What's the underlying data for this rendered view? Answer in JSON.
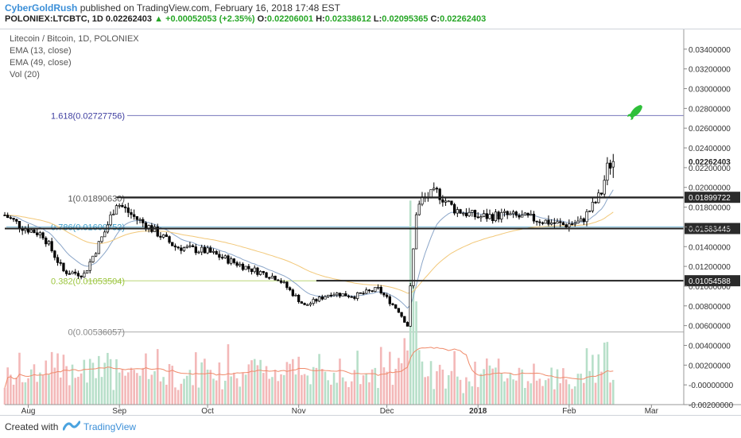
{
  "header": {
    "user": "CyberGoldRush",
    "published": "published on TradingView.com, February 16, 2018 17:48 EST",
    "symbol": "POLONIEX:LTCBTC, 1D",
    "last": "0.02262403",
    "change": "+0.00052053 (+2.35%)",
    "open_label": "O:",
    "open": "0.02206001",
    "high_label": "H:",
    "high": "0.02338612",
    "low_label": "L:",
    "low": "0.02095365",
    "close_label": "C:",
    "close": "0.02262403"
  },
  "legend": {
    "title": "Litecoin / Bitcoin, 1D, POLONIEX",
    "ema13": "EMA (13, close)",
    "ema49": "EMA (49, close)",
    "vol": "Vol (20)"
  },
  "footer": {
    "created": "Created with",
    "brand": "TradingView"
  },
  "colors": {
    "up": "#ffffff",
    "down": "#000000",
    "wick": "#000000",
    "ema13": "#8aa5c8",
    "ema49": "#f2c879",
    "vol_up": "#b7dfc9",
    "vol_down": "#f3b8b8",
    "vol_ma": "#f08a6a",
    "fib_1618": "#3e3ea0",
    "fib_1": "#555555",
    "fib_0786": "#3b9cc8",
    "fib_0382": "#9bc53d",
    "fib_0": "#888888",
    "rocket": "#2fbf3a"
  },
  "chart_data": {
    "type": "candlestick",
    "y_axis": {
      "ylim": [
        -0.002,
        0.036
      ],
      "ticks": [
        "0.03400000",
        "0.03200000",
        "0.03000000",
        "0.02800000",
        "0.02600000",
        "0.02400000",
        "0.02200000",
        "0.02000000",
        "0.01800000",
        "0.01600000",
        "0.01400000",
        "0.01200000",
        "0.01000000",
        "0.00800000",
        "0.00600000",
        "0.00400000",
        "0.00200000",
        "-0.00000000",
        "-0.00200000"
      ],
      "tick_values": [
        0.034,
        0.032,
        0.03,
        0.028,
        0.026,
        0.024,
        0.022,
        0.02,
        0.018,
        0.016,
        0.014,
        0.012,
        0.01,
        0.008,
        0.006,
        0.004,
        0.002,
        0.0,
        -0.002
      ]
    },
    "x_axis": {
      "labels": [
        "Aug",
        "Sep",
        "Oct",
        "Nov",
        "Dec",
        "2018",
        "Feb",
        "Mar"
      ],
      "label_dates": [
        "2017-08-01",
        "2017-09-01",
        "2017-10-01",
        "2017-11-01",
        "2017-12-01",
        "2018-01-01",
        "2018-02-01",
        "2018-03-01"
      ],
      "start": "2017-07-24",
      "end": "2018-03-12"
    },
    "fib_levels": [
      {
        "label": "1.618(0.02727756)",
        "value": 0.02727756
      },
      {
        "label": "1(0.01890630)",
        "value": 0.0189063
      },
      {
        "label": "0.786(0.01600752)",
        "value": 0.01600752
      },
      {
        "label": "0.382(0.01053504)",
        "value": 0.01053504
      },
      {
        "label": "0(0.00536057)",
        "value": 0.00536057
      }
    ],
    "horizontal_lines": [
      {
        "label": "0.01899722",
        "value": 0.01899722
      },
      {
        "label": "0.01583445",
        "value": 0.01583445
      },
      {
        "label": "0.01054588",
        "value": 0.01054588
      }
    ],
    "last_price_label": "0.02262403",
    "last_price": 0.02262403,
    "close_anchors": [
      [
        "2017-07-24",
        0.0172
      ],
      [
        "2017-07-30",
        0.016
      ],
      [
        "2017-08-06",
        0.0152
      ],
      [
        "2017-08-13",
        0.0115
      ],
      [
        "2017-08-20",
        0.0112
      ],
      [
        "2017-08-27",
        0.0155
      ],
      [
        "2017-08-31",
        0.0185
      ],
      [
        "2017-09-06",
        0.017
      ],
      [
        "2017-09-12",
        0.0158
      ],
      [
        "2017-09-20",
        0.014
      ],
      [
        "2017-10-01",
        0.0135
      ],
      [
        "2017-10-15",
        0.0118
      ],
      [
        "2017-10-25",
        0.0108
      ],
      [
        "2017-11-03",
        0.008
      ],
      [
        "2017-11-12",
        0.0093
      ],
      [
        "2017-11-20",
        0.009
      ],
      [
        "2017-11-28",
        0.0097
      ],
      [
        "2017-12-05",
        0.0075
      ],
      [
        "2017-12-08",
        0.006
      ],
      [
        "2017-12-11",
        0.0175
      ],
      [
        "2017-12-13",
        0.0188
      ],
      [
        "2017-12-18",
        0.0195
      ],
      [
        "2017-12-24",
        0.0178
      ],
      [
        "2018-01-01",
        0.017
      ],
      [
        "2018-01-10",
        0.0172
      ],
      [
        "2018-01-20",
        0.0168
      ],
      [
        "2018-01-30",
        0.0162
      ],
      [
        "2018-02-05",
        0.0165
      ],
      [
        "2018-02-10",
        0.0185
      ],
      [
        "2018-02-12",
        0.0195
      ],
      [
        "2018-02-14",
        0.022
      ],
      [
        "2018-02-16",
        0.0226
      ]
    ]
  }
}
